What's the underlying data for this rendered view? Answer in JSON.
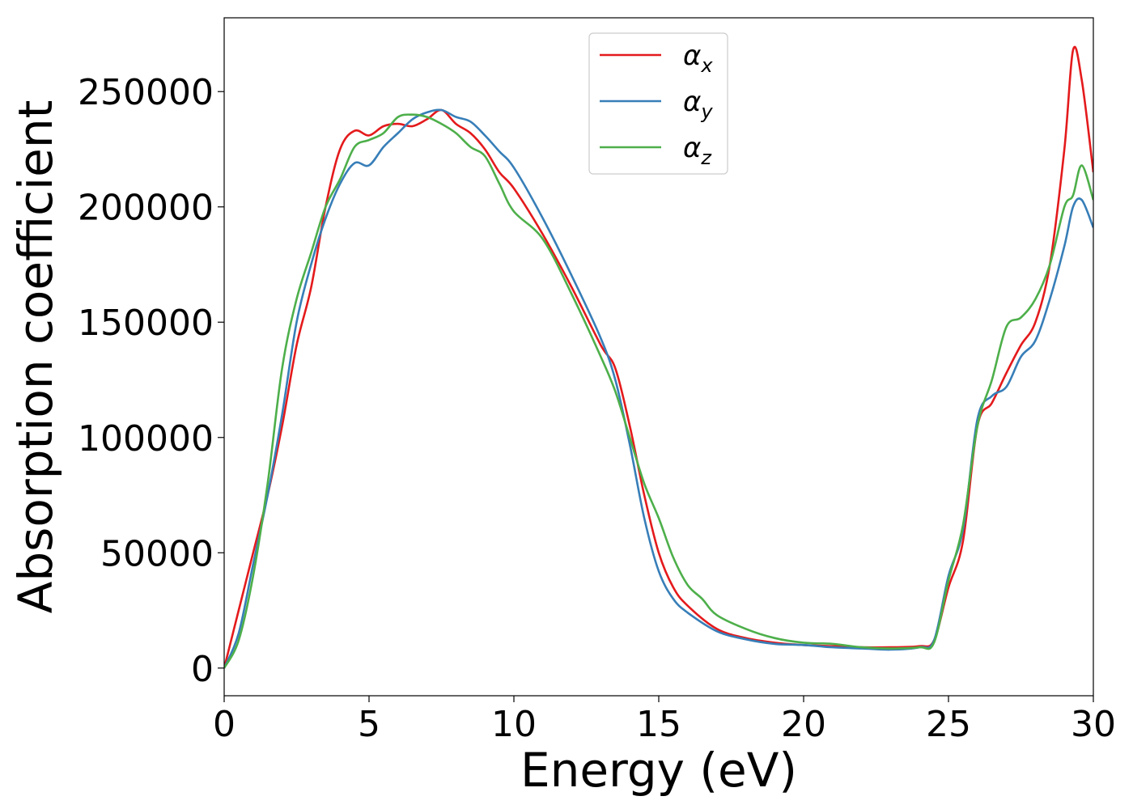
{
  "chart_data": {
    "type": "line",
    "xlabel": "Energy (eV)",
    "ylabel": "Absorption coefficient",
    "xlim": [
      0,
      30
    ],
    "ylim": [
      -12000,
      282000
    ],
    "xticks": [
      0,
      5,
      10,
      15,
      20,
      25,
      30
    ],
    "xtick_labels": [
      "0",
      "5",
      "10",
      "15",
      "20",
      "25",
      "30"
    ],
    "yticks": [
      0,
      50000,
      100000,
      150000,
      200000,
      250000
    ],
    "ytick_labels": [
      "0",
      "50000",
      "100000",
      "150000",
      "200000",
      "250000"
    ],
    "grid": false,
    "legend_position": "top-center",
    "series": [
      {
        "name": "α",
        "subscript": "x",
        "color": "#e41a1c",
        "x": [
          0,
          0.5,
          1,
          1.5,
          2,
          2.5,
          3,
          3.5,
          4,
          4.5,
          5,
          5.5,
          6,
          6.5,
          7,
          7.5,
          8,
          8.5,
          9,
          9.5,
          10,
          11,
          12,
          13,
          13.5,
          14,
          14.5,
          15,
          15.5,
          16,
          17,
          18,
          19,
          20,
          21,
          22,
          23,
          24,
          24.5,
          25,
          25.5,
          26,
          26.5,
          27,
          27.5,
          28,
          28.5,
          29,
          29.3,
          29.6,
          30
        ],
        "y": [
          0,
          25000,
          50000,
          75000,
          105000,
          140000,
          165000,
          200000,
          225000,
          233000,
          231000,
          235000,
          236000,
          235000,
          238000,
          242000,
          236000,
          232000,
          225000,
          215000,
          208000,
          188000,
          165000,
          140000,
          130000,
          105000,
          75000,
          50000,
          35000,
          27000,
          17000,
          13000,
          11000,
          10000,
          9500,
          9000,
          9000,
          9500,
          12000,
          35000,
          55000,
          105000,
          115000,
          128000,
          140000,
          150000,
          175000,
          225000,
          268000,
          255000,
          215000
        ]
      },
      {
        "name": "α",
        "subscript": "y",
        "color": "#377eb8",
        "x": [
          0,
          0.5,
          1,
          1.5,
          2,
          2.5,
          3,
          3.5,
          4,
          4.5,
          5,
          5.5,
          6,
          6.5,
          7,
          7.5,
          8,
          8.5,
          9,
          9.5,
          10,
          11,
          12,
          13,
          13.5,
          14,
          14.5,
          15,
          15.5,
          16,
          17,
          18,
          19,
          20,
          21,
          22,
          23,
          24,
          24.5,
          25,
          25.5,
          26,
          26.5,
          27,
          27.5,
          28,
          28.5,
          29,
          29.3,
          29.6,
          30
        ],
        "y": [
          0,
          15000,
          45000,
          75000,
          110000,
          150000,
          175000,
          195000,
          210000,
          219000,
          218000,
          226000,
          232000,
          238000,
          241000,
          242000,
          239000,
          237000,
          231000,
          224000,
          217000,
          195000,
          170000,
          143000,
          125000,
          97000,
          65000,
          42000,
          30000,
          24000,
          16000,
          12500,
          10500,
          10000,
          9000,
          8500,
          8000,
          9000,
          12000,
          40000,
          60000,
          108000,
          118000,
          122000,
          135000,
          142000,
          160000,
          183000,
          200000,
          203000,
          191000
        ]
      },
      {
        "name": "α",
        "subscript": "z",
        "color": "#4daf4a",
        "x": [
          0,
          0.5,
          1,
          1.5,
          2,
          2.5,
          3,
          3.5,
          4,
          4.5,
          5,
          5.5,
          6,
          6.5,
          7,
          7.5,
          8,
          8.5,
          9,
          9.5,
          10,
          11,
          12,
          13,
          13.5,
          14,
          14.5,
          15,
          15.5,
          16,
          16.5,
          17,
          18,
          19,
          20,
          21,
          22,
          23,
          24,
          24.5,
          25,
          25.5,
          26,
          26.5,
          27,
          27.5,
          28,
          28.5,
          29,
          29.3,
          29.6,
          30
        ],
        "y": [
          0,
          12000,
          40000,
          80000,
          130000,
          160000,
          180000,
          200000,
          212000,
          226000,
          229000,
          232000,
          239000,
          240000,
          239000,
          236000,
          232000,
          226000,
          222000,
          210000,
          198000,
          186000,
          162000,
          135000,
          120000,
          100000,
          80000,
          65000,
          48000,
          36000,
          30000,
          23000,
          17000,
          13000,
          11000,
          10500,
          9000,
          8500,
          9000,
          11000,
          38000,
          62000,
          105000,
          125000,
          148000,
          152000,
          160000,
          175000,
          200000,
          205000,
          218000,
          203000
        ]
      }
    ]
  }
}
